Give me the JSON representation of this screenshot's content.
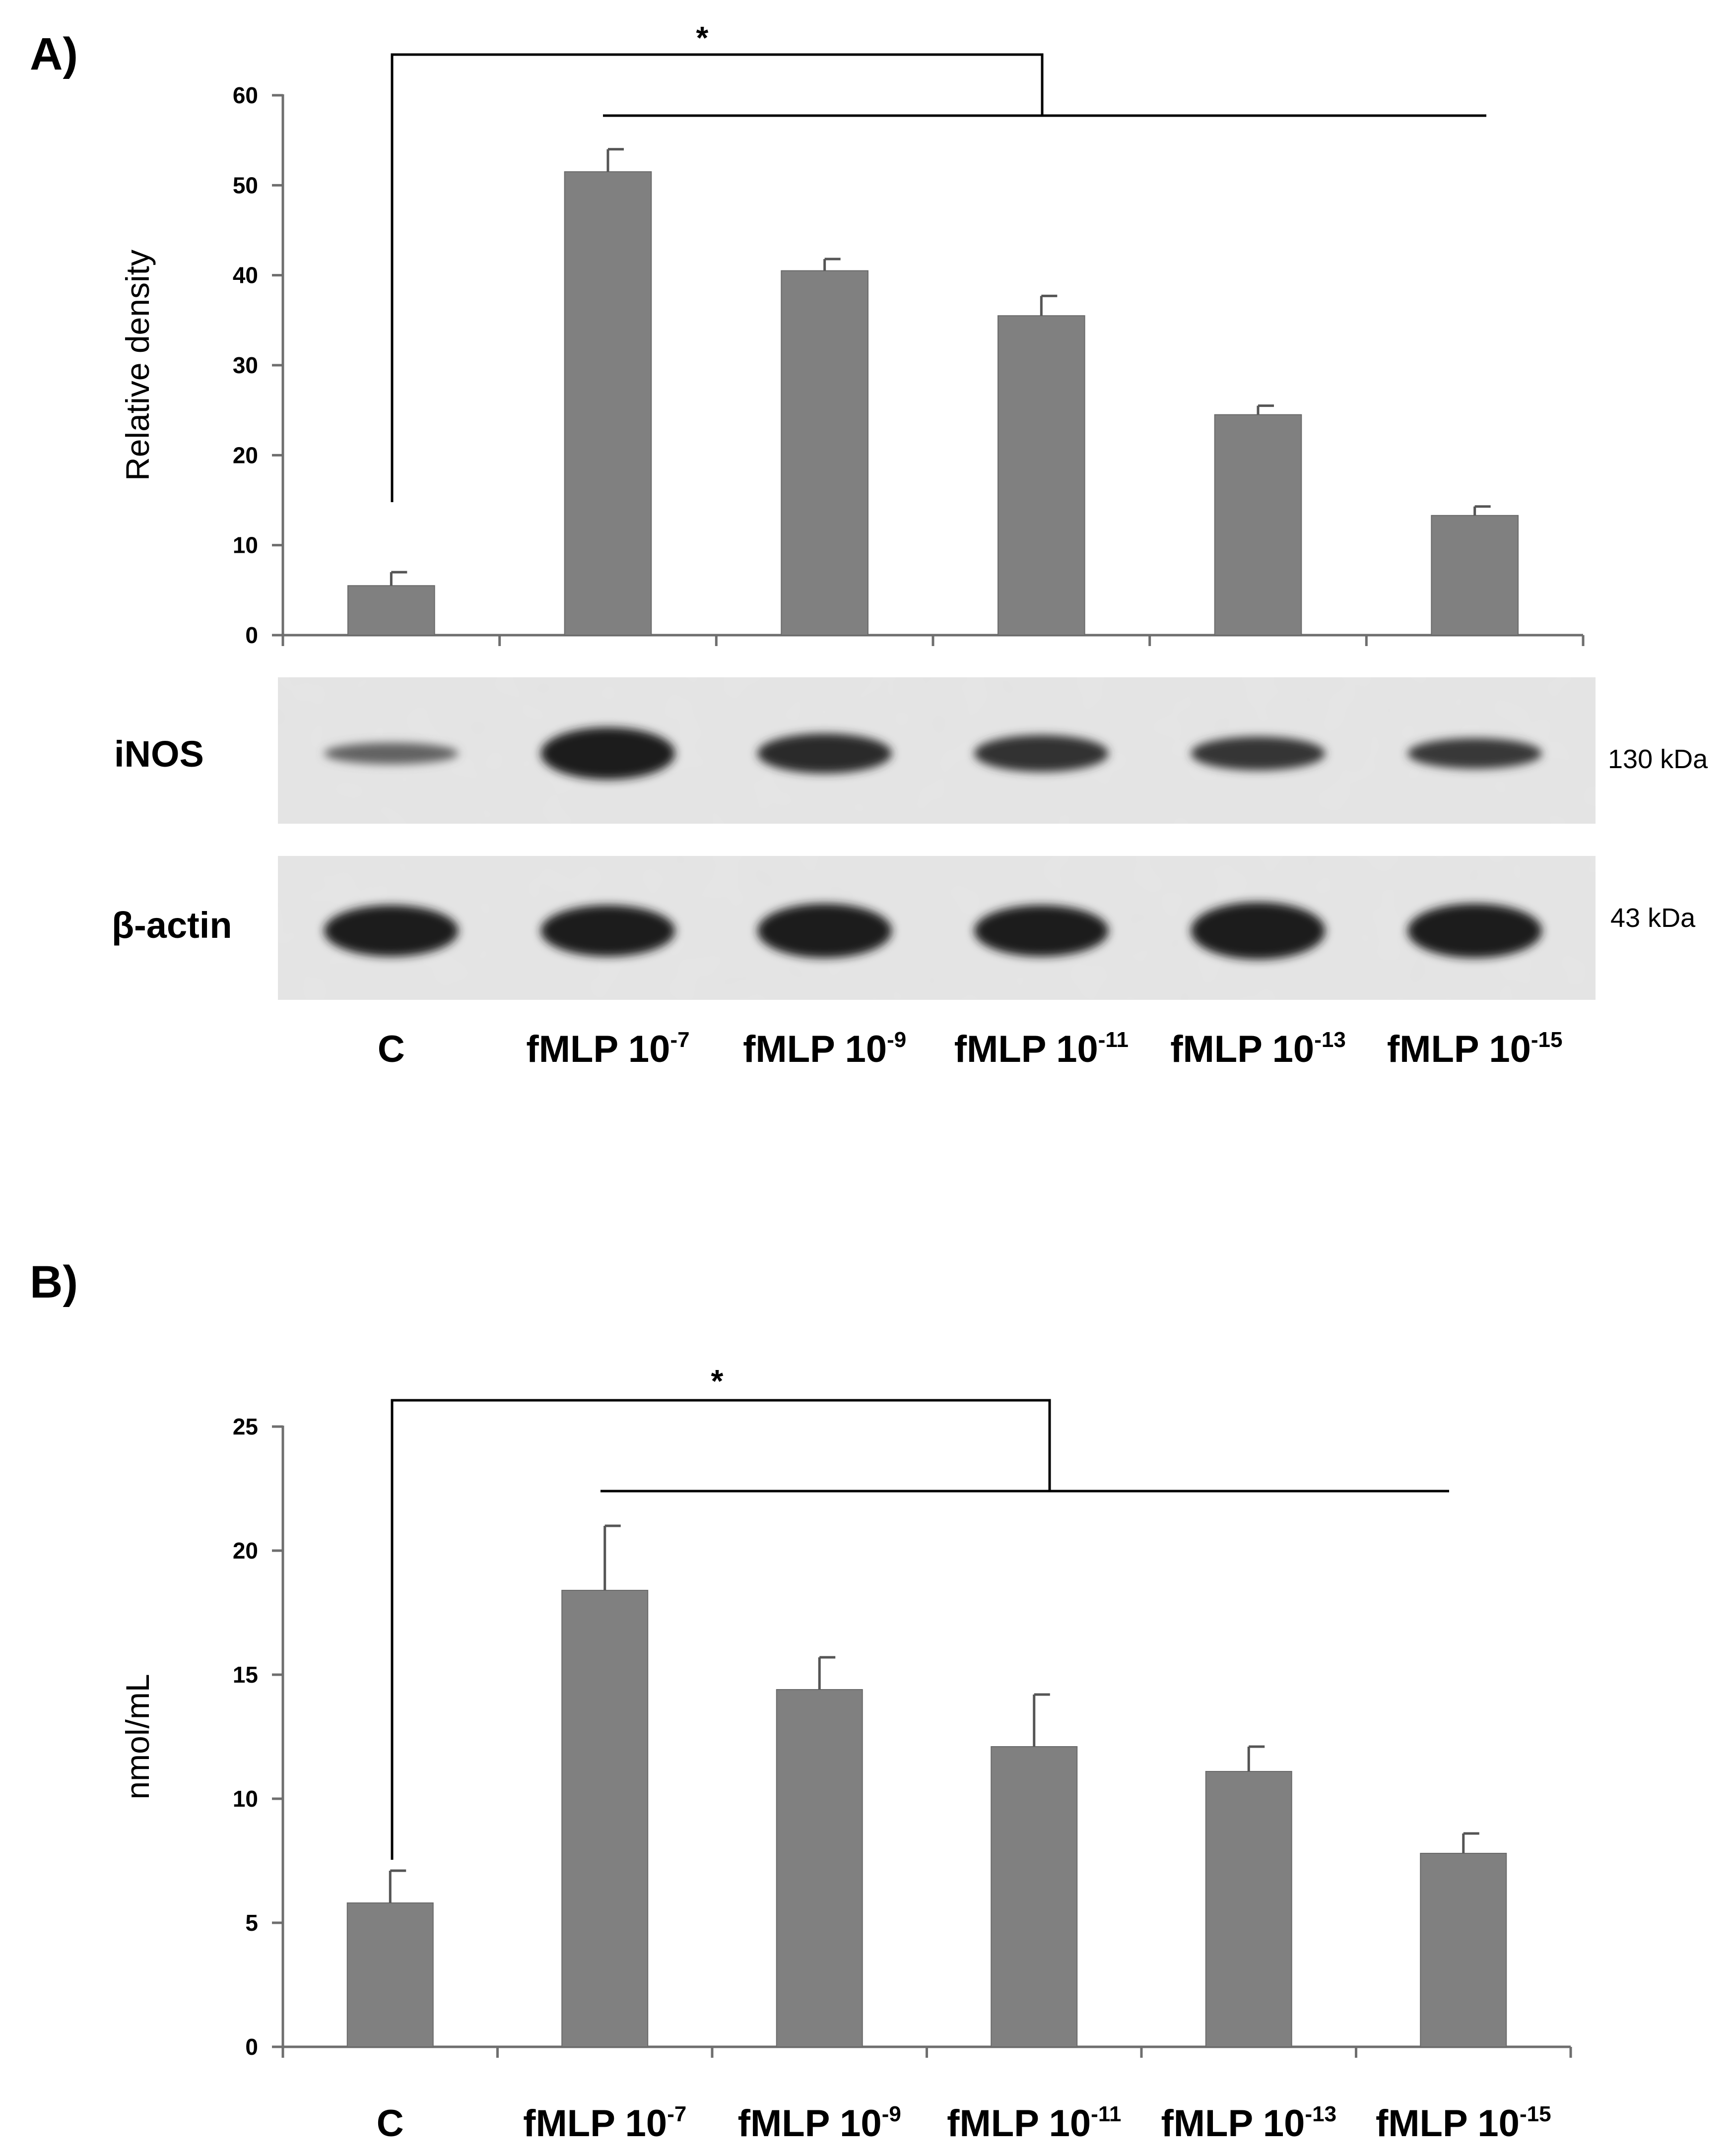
{
  "panels": {
    "a": {
      "label": "A)",
      "significance": "*",
      "blot": {
        "rows": [
          {
            "label": "iNOS",
            "size": "130 kDa",
            "band_intensity": [
              0.55,
              1.0,
              0.92,
              0.88,
              0.85,
              0.82
            ],
            "band_thickness": [
              0.35,
              0.85,
              0.65,
              0.6,
              0.55,
              0.5
            ]
          },
          {
            "label": "β-actin",
            "size": "43 kDa",
            "band_intensity": [
              1.0,
              1.0,
              1.0,
              1.0,
              1.0,
              1.0
            ],
            "band_thickness": [
              0.85,
              0.85,
              0.9,
              0.85,
              0.95,
              0.9
            ]
          }
        ]
      }
    },
    "b": {
      "label": "B)",
      "significance": "*"
    }
  },
  "chart_data": [
    {
      "type": "bar",
      "panel": "A)",
      "categories": [
        "C",
        "fMLP 10-7",
        "fMLP 10-9",
        "fMLP 10-11",
        "fMLP 10-13",
        "fMLP 10-15"
      ],
      "category_labels": [
        {
          "base": "C",
          "exp": ""
        },
        {
          "base": "fMLP 10",
          "exp": "-7"
        },
        {
          "base": "fMLP 10",
          "exp": "-9"
        },
        {
          "base": "fMLP 10",
          "exp": "-11"
        },
        {
          "base": "fMLP 10",
          "exp": "-13"
        },
        {
          "base": "fMLP 10",
          "exp": "-15"
        }
      ],
      "values": [
        5.5,
        51.5,
        40.5,
        35.5,
        24.5,
        13.3
      ],
      "error": [
        1.5,
        2.5,
        1.3,
        2.2,
        1.0,
        1.0
      ],
      "title": "",
      "xlabel": "",
      "ylabel": "Relative density",
      "ylim": [
        0,
        60
      ],
      "yticks": [
        0,
        10,
        20,
        30,
        40,
        50,
        60
      ],
      "bar_color": "#808080",
      "grid": false
    },
    {
      "type": "bar",
      "panel": "B)",
      "categories": [
        "C",
        "fMLP 10-7",
        "fMLP 10-9",
        "fMLP 10-11",
        "fMLP 10-13",
        "fMLP 10-15"
      ],
      "category_labels": [
        {
          "base": "C",
          "exp": ""
        },
        {
          "base": "fMLP 10",
          "exp": "-7"
        },
        {
          "base": "fMLP 10",
          "exp": "-9"
        },
        {
          "base": "fMLP 10",
          "exp": "-11"
        },
        {
          "base": "fMLP 10",
          "exp": "-13"
        },
        {
          "base": "fMLP 10",
          "exp": "-15"
        }
      ],
      "values": [
        5.8,
        18.4,
        14.4,
        12.1,
        11.1,
        7.8
      ],
      "error": [
        1.3,
        2.6,
        1.3,
        2.1,
        1.0,
        0.8
      ],
      "title": "",
      "xlabel": "",
      "ylabel": "nmol/mL",
      "ylim": [
        0,
        25
      ],
      "yticks": [
        0,
        5,
        10,
        15,
        20,
        25
      ],
      "bar_color": "#808080",
      "grid": false
    }
  ]
}
